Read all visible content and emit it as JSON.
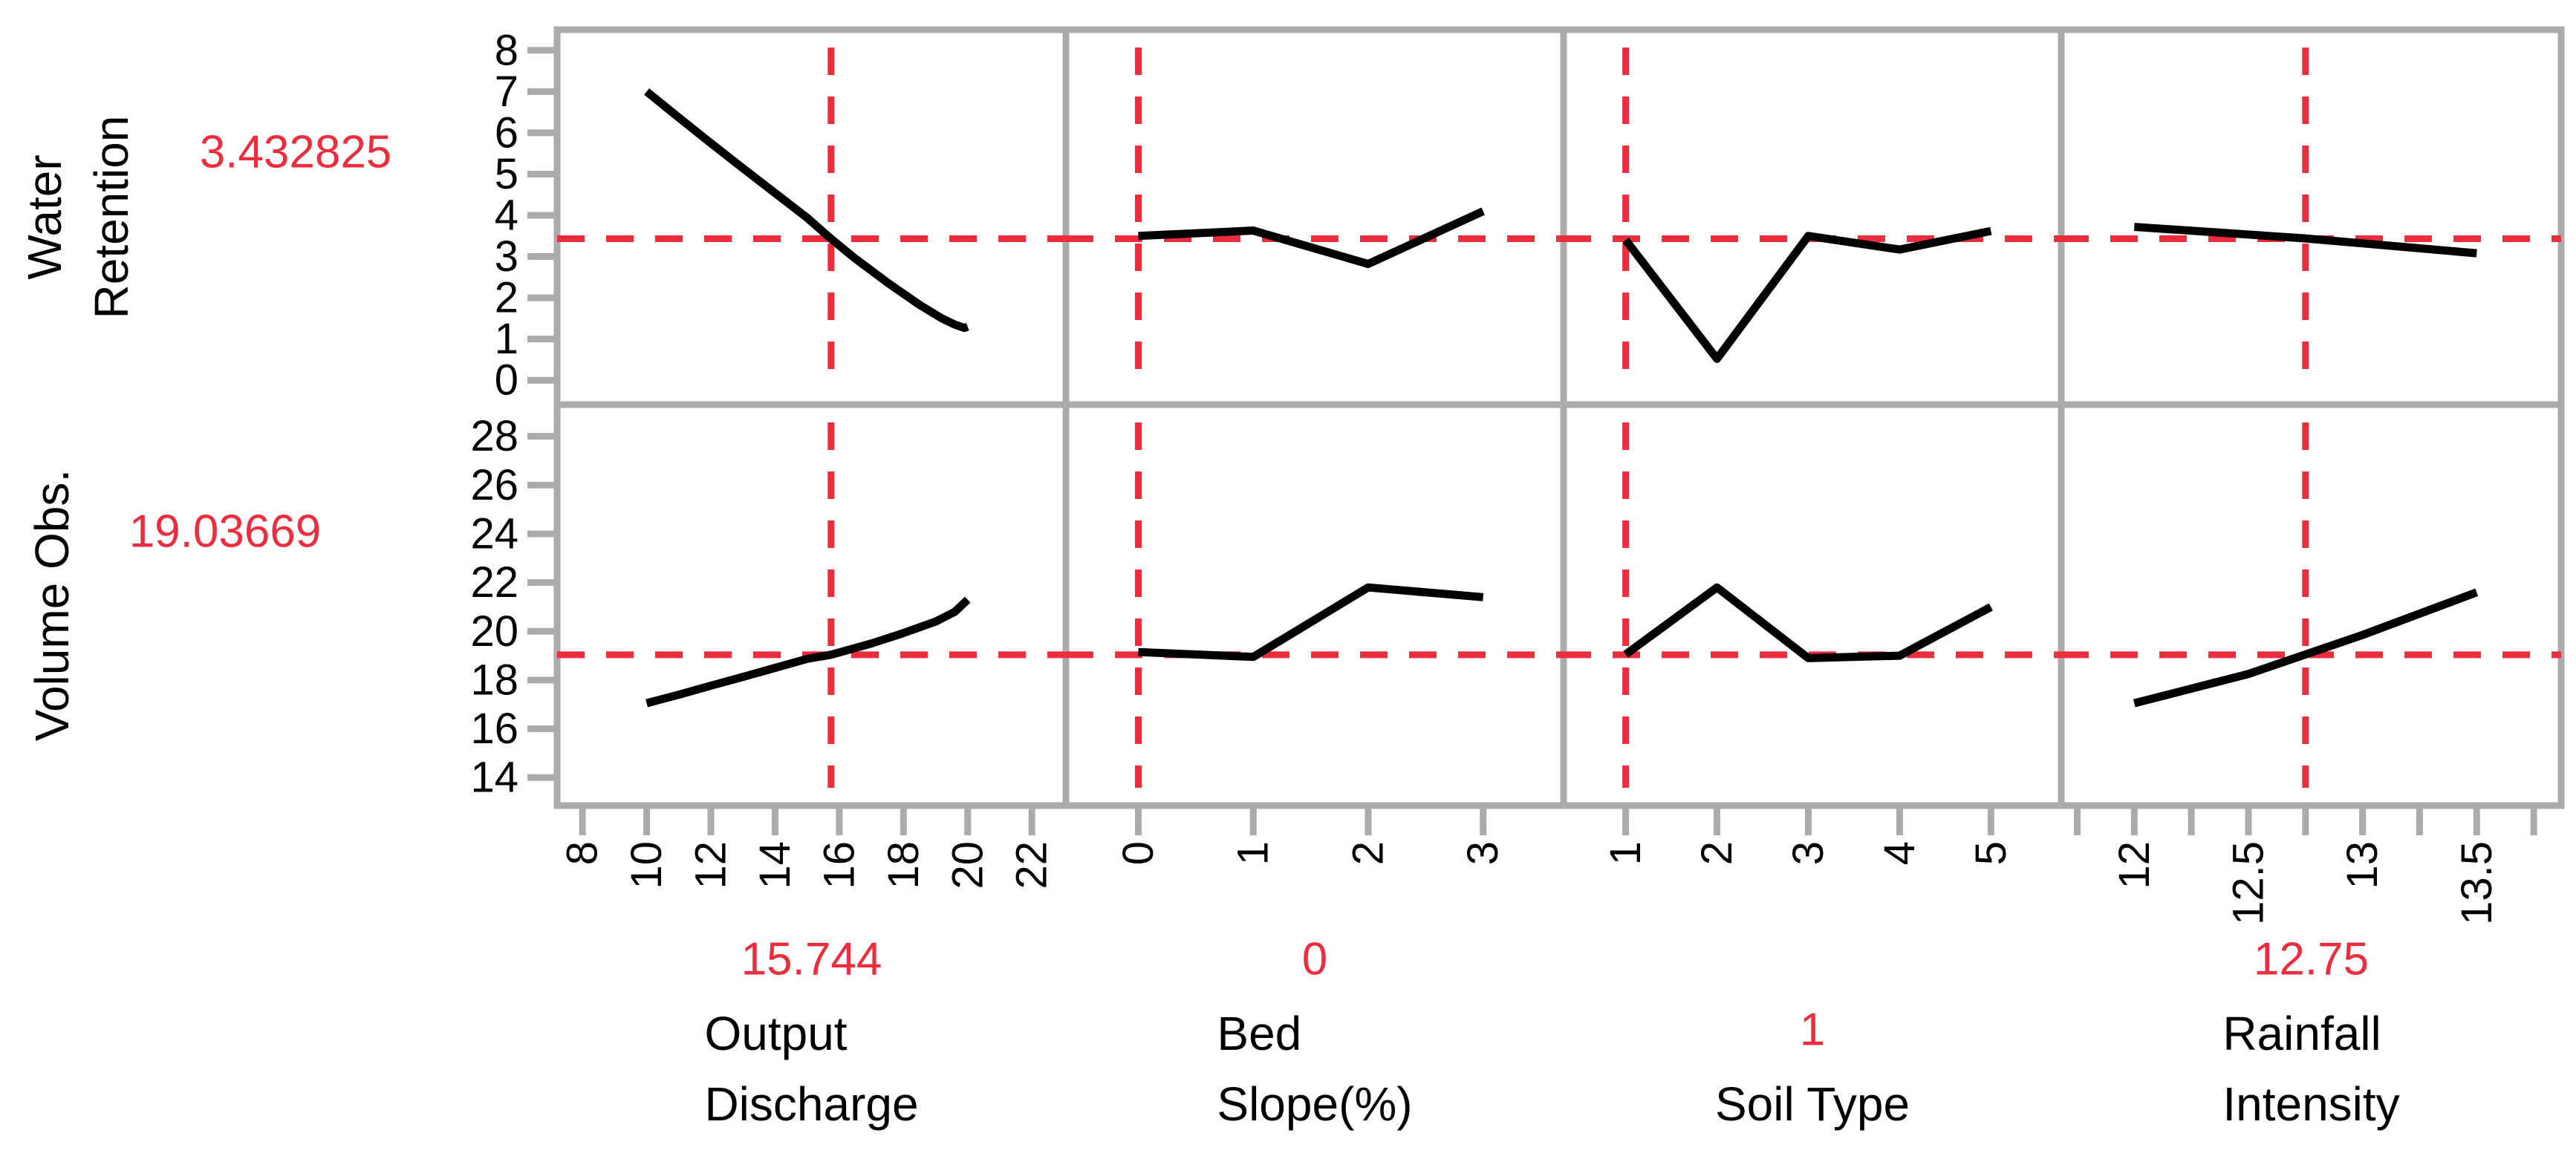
{
  "chart_data": {
    "type": "line",
    "title": "",
    "subtitle": "",
    "grid": "off",
    "legend_position": "none",
    "colors": {
      "accent_red": "#EB2D3E",
      "axis_gray": "#ABABAB",
      "trace_black": "#000000",
      "background": "#FFFFFF"
    },
    "responses": [
      {
        "label": "Water\nRetention",
        "current_value_label": "3.432825",
        "current_value": 3.432825,
        "ylim": [
          -0.59,
          8.5
        ],
        "ticks": [
          0,
          1,
          2,
          3,
          4,
          5,
          6,
          7,
          8
        ],
        "tick_labels": [
          "0",
          "1",
          "2",
          "3",
          "4",
          "5",
          "6",
          "7",
          "8"
        ]
      },
      {
        "label": "Volume Obs.",
        "current_value_label": "19.03669",
        "current_value": 19.03669,
        "ylim": [
          12.85,
          29.3
        ],
        "ticks": [
          14,
          16,
          18,
          20,
          22,
          24,
          26,
          28
        ],
        "tick_labels": [
          "14",
          "16",
          "18",
          "20",
          "22",
          "24",
          "26",
          "28"
        ]
      }
    ],
    "factors": [
      {
        "name": "Output\nDischarge",
        "current_value_label": "15.744",
        "current_value": 15.744,
        "xlim": [
          7.21,
          23.06
        ],
        "ticks": [
          8,
          10,
          12,
          14,
          16,
          18,
          20,
          22
        ],
        "tick_labels": [
          "8",
          "10",
          "12",
          "14",
          "16",
          "18",
          "20",
          "22"
        ],
        "minor_ticks": []
      },
      {
        "name": "Bed\nSlope(%)",
        "current_value_label": "0",
        "current_value": 0,
        "xlim": [
          -0.63,
          3.7
        ],
        "ticks": [
          0,
          1,
          2,
          3
        ],
        "tick_labels": [
          "0",
          "1",
          "2",
          "3"
        ],
        "minor_ticks": []
      },
      {
        "name": "Soil Type",
        "current_value_label": "1",
        "current_value": 1,
        "xlim": [
          0.32,
          5.77
        ],
        "ticks": [
          1,
          2,
          3,
          4,
          5
        ],
        "tick_labels": [
          "1",
          "2",
          "3",
          "4",
          "5"
        ],
        "minor_ticks": []
      },
      {
        "name": "Rainfall\nIntensity",
        "current_value_label": "12.75",
        "current_value": 12.75,
        "xlim": [
          11.68,
          13.87
        ],
        "ticks": [
          12,
          12.5,
          13,
          13.5
        ],
        "tick_labels": [
          "12",
          "12.5",
          "13",
          "13.5"
        ],
        "minor_ticks": [
          11.75,
          12.25,
          12.75,
          13.25,
          13.75
        ]
      }
    ],
    "profiles": [
      [
        {
          "points": [
            [
              10,
              7.0
            ],
            [
              11,
              6.37
            ],
            [
              12,
              5.75
            ],
            [
              13,
              5.14
            ],
            [
              14,
              4.54
            ],
            [
              15,
              3.94
            ],
            [
              15.744,
              3.43
            ],
            [
              16.5,
              2.95
            ],
            [
              17.5,
              2.37
            ],
            [
              18.5,
              1.83
            ],
            [
              19.2,
              1.5
            ],
            [
              19.6,
              1.35
            ],
            [
              19.9,
              1.27
            ],
            [
              20,
              1.3
            ]
          ]
        },
        {
          "points": [
            [
              0,
              3.5
            ],
            [
              1,
              3.63
            ],
            [
              2,
              2.82
            ],
            [
              3,
              4.1
            ]
          ]
        },
        {
          "points": [
            [
              1,
              3.4
            ],
            [
              2,
              0.52
            ],
            [
              3,
              3.5
            ],
            [
              4,
              3.17
            ],
            [
              5,
              3.62
            ]
          ]
        },
        {
          "points": [
            [
              12,
              3.72
            ],
            [
              12.75,
              3.44
            ],
            [
              13.5,
              3.08
            ]
          ]
        }
      ],
      [
        {
          "points": [
            [
              10,
              17.05
            ],
            [
              11,
              17.4
            ],
            [
              12,
              17.77
            ],
            [
              13,
              18.13
            ],
            [
              14,
              18.5
            ],
            [
              15,
              18.87
            ],
            [
              15.744,
              19.04
            ],
            [
              17,
              19.5
            ],
            [
              18,
              19.93
            ],
            [
              19,
              20.4
            ],
            [
              19.6,
              20.8
            ],
            [
              20,
              21.3
            ]
          ]
        },
        {
          "points": [
            [
              0,
              19.15
            ],
            [
              1,
              18.95
            ],
            [
              2,
              21.8
            ],
            [
              3,
              21.4
            ]
          ]
        },
        {
          "points": [
            [
              1,
              19.05
            ],
            [
              2,
              21.8
            ],
            [
              3,
              18.9
            ],
            [
              4,
              19.0
            ],
            [
              5,
              21.0
            ]
          ]
        },
        {
          "points": [
            [
              12,
              17.05
            ],
            [
              12.5,
              18.25
            ],
            [
              12.75,
              19.05
            ],
            [
              13,
              19.85
            ],
            [
              13.5,
              21.6
            ]
          ]
        }
      ]
    ]
  }
}
